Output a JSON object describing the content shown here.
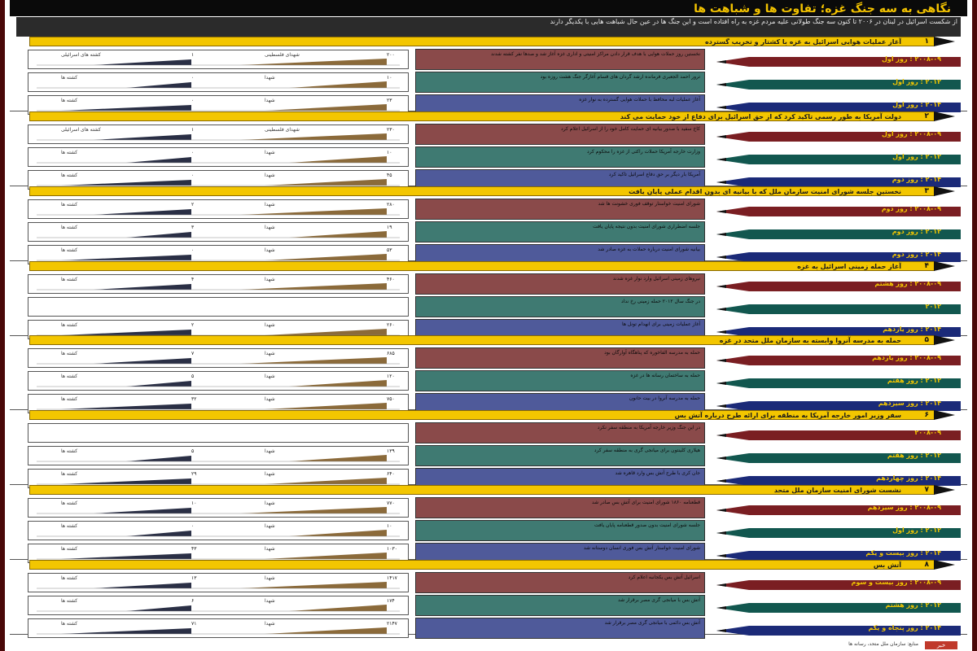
{
  "colors": {
    "frame": "#5a0f0f",
    "banner": "#f3c600",
    "row1": "#7a1e22",
    "row2": "#12574f",
    "row3": "#1b2a78",
    "panel1": "#8a4a4a",
    "panel2": "#3f7a72",
    "panel3": "#4f5a9a",
    "bar_brown": "#8b6a3a",
    "bar_dark": "#2a2f45"
  },
  "title": "نگاهی به سه جنگ غزه؛ تفاوت ها و شباهت ها",
  "intro": "از شکست اسرائیل در لبنان در ۲۰۰۶ تا کنون سه جنگ طولانی علیه مردم غزه به راه افتاده است و این جنگ ها در عین حال شباهت هایی با یکدیگر دارند",
  "sections": [
    {
      "num": "۱",
      "banner": "آغاز عملیات هوایی اسرائیل به غزه با کشتار و تخریب گسترده",
      "rows": [
        {
          "date": "۲۰۰۸-۰۹ : روز اول",
          "panel": "نخستین روز حملات هوایی با هدف قرار دادن مراکز امنیتی و اداری غزه آغاز شد و صدها نفر کشته شدند",
          "l1": "شهدای فلسطینی",
          "v1": "۲۰۰",
          "l2": "کشته های اسرائیلی",
          "v2": "۱"
        },
        {
          "date": "۲۰۱۲ : روز اول",
          "panel": "ترور احمد الجعبری فرمانده ارشد گردان های قسام آغازگر جنگ هشت روزه بود",
          "l1": "شهدا",
          "v1": "۱۰",
          "l2": "کشته ها",
          "v2": "۰"
        },
        {
          "date": "۲۰۱۴ : روز اول",
          "panel": "آغاز عملیات لبه محافظ با حملات هوایی گسترده به نوار غزه",
          "l1": "شهدا",
          "v1": "۲۳",
          "l2": "کشته ها",
          "v2": "۰"
        }
      ]
    },
    {
      "num": "۲",
      "banner": "دولت آمریکا به طور رسمی تاکید کرد که از حق اسرائیل برای دفاع از خود حمایت می کند",
      "rows": [
        {
          "date": "۲۰۰۸-۰۹ : روز اول",
          "panel": "کاخ سفید با صدور بیانیه ای حمایت کامل خود را از اسرائیل اعلام کرد",
          "l1": "شهدای فلسطینی",
          "v1": "۲۳۰",
          "l2": "کشته های اسرائیلی",
          "v2": "۱"
        },
        {
          "date": "۲۰۱۲ : روز اول",
          "panel": "وزارت خارجه آمریکا حملات راکتی از غزه را محکوم کرد",
          "l1": "شهدا",
          "v1": "۱۰",
          "l2": "کشته ها",
          "v2": "۰"
        },
        {
          "date": "۲۰۱۴ : روز دوم",
          "panel": "آمریکا بار دیگر بر حق دفاع اسرائیل تاکید کرد",
          "l1": "شهدا",
          "v1": "۴۵",
          "l2": "کشته ها",
          "v2": "۰"
        }
      ]
    },
    {
      "num": "۳",
      "banner": "نخستین جلسه شورای امنیت سازمان ملل که با بیانیه ای بدون اقدام عملی پایان یافت",
      "rows": [
        {
          "date": "۲۰۰۸-۰۹ : روز دوم",
          "panel": "شورای امنیت خواستار توقف فوری خشونت ها شد",
          "l1": "شهدا",
          "v1": "۲۸۰",
          "l2": "کشته ها",
          "v2": "۲"
        },
        {
          "date": "۲۰۱۲ : روز دوم",
          "panel": "جلسه اضطراری شورای امنیت بدون نتیجه پایان یافت",
          "l1": "شهدا",
          "v1": "۱۹",
          "l2": "کشته ها",
          "v2": "۳"
        },
        {
          "date": "۲۰۱۴ : روز دوم",
          "panel": "بیانیه شورای امنیت درباره حملات به غزه صادر شد",
          "l1": "شهدا",
          "v1": "۵۳",
          "l2": "کشته ها",
          "v2": "۰"
        }
      ]
    },
    {
      "num": "۴",
      "banner": "آغاز حمله زمینی اسرائیل به غزه",
      "rows": [
        {
          "date": "۲۰۰۸-۰۹ : روز هشتم",
          "panel": "نیروهای زمینی اسرائیل وارد نوار غزه شدند",
          "l1": "شهدا",
          "v1": "۴۶۰",
          "l2": "کشته ها",
          "v2": "۴"
        },
        {
          "date": "۲۰۱۲",
          "panel": "در جنگ سال ۲۰۱۲ حمله زمینی رخ نداد",
          "l1": "",
          "v1": "",
          "l2": "",
          "v2": ""
        },
        {
          "date": "۲۰۱۴ : روز یازدهم",
          "panel": "آغاز عملیات زمینی برای انهدام تونل ها",
          "l1": "شهدا",
          "v1": "۲۶۰",
          "l2": "کشته ها",
          "v2": "۲"
        }
      ]
    },
    {
      "num": "۵",
      "banner": "حمله به مدرسه آنروا وابسته به سازمان ملل متحد در غزه",
      "rows": [
        {
          "date": "۲۰۰۸-۰۹ : روز یازدهم",
          "panel": "حمله به مدرسه الفاخوره که پناهگاه آوارگان بود",
          "l1": "شهدا",
          "v1": "۶۸۵",
          "l2": "کشته ها",
          "v2": "۷"
        },
        {
          "date": "۲۰۱۲ : روز هفتم",
          "panel": "حمله به ساختمان رسانه ها در غزه",
          "l1": "شهدا",
          "v1": "۱۲۰",
          "l2": "کشته ها",
          "v2": "۵"
        },
        {
          "date": "۲۰۱۴ : روز سیزدهم",
          "panel": "حمله به مدرسه آنروا در بیت حانون",
          "l1": "شهدا",
          "v1": "۷۵۰",
          "l2": "کشته ها",
          "v2": "۳۲"
        }
      ]
    },
    {
      "num": "۶",
      "banner": "سفر وزیر امور خارجه آمریکا به منطقه برای ارائه طرح درباره آتش بس",
      "rows": [
        {
          "date": "۲۰۰۸-۰۹",
          "panel": "در این جنگ وزیر خارجه آمریکا به منطقه سفر نکرد",
          "l1": "",
          "v1": "",
          "l2": "",
          "v2": ""
        },
        {
          "date": "۲۰۱۲ : روز هفتم",
          "panel": "هیلاری کلینتون برای میانجی گری به منطقه سفر کرد",
          "l1": "شهدا",
          "v1": "۱۳۹",
          "l2": "کشته ها",
          "v2": "۵"
        },
        {
          "date": "۲۰۱۴ : روز چهاردهم",
          "panel": "جان کری با طرح آتش بس وارد قاهره شد",
          "l1": "شهدا",
          "v1": "۶۴۰",
          "l2": "کشته ها",
          "v2": "۲۹"
        }
      ]
    },
    {
      "num": "۷",
      "banner": "نشست شورای امنیت سازمان ملل متحد",
      "rows": [
        {
          "date": "۲۰۰۸-۰۹ : روز سیزدهم",
          "panel": "قطعنامه ۱۸۶۰ شورای امنیت برای آتش بس صادر شد",
          "l1": "شهدا",
          "v1": "۷۷۰",
          "l2": "کشته ها",
          "v2": "۱۰"
        },
        {
          "date": "۲۰۱۲ : روز اول",
          "panel": "جلسه شورای امنیت بدون صدور قطعنامه پایان یافت",
          "l1": "شهدا",
          "v1": "۱۰",
          "l2": "کشته ها",
          "v2": "۰"
        },
        {
          "date": "۲۰۱۴ : روز بیست و یکم",
          "panel": "شورای امنیت خواستار آتش بس فوری انسان دوستانه شد",
          "l1": "شهدا",
          "v1": "۱۰۳۰",
          "l2": "کشته ها",
          "v2": "۴۳"
        }
      ]
    },
    {
      "num": "۸",
      "banner": "آتش بس",
      "rows": [
        {
          "date": "۲۰۰۸-۰۹ : روز بیست و سوم",
          "panel": "اسرائیل آتش بس یکجانبه اعلام کرد",
          "l1": "شهدا",
          "v1": "۱۴۱۷",
          "l2": "کشته ها",
          "v2": "۱۳"
        },
        {
          "date": "۲۰۱۲ : روز هشتم",
          "panel": "آتش بس با میانجی گری مصر برقرار شد",
          "l1": "شهدا",
          "v1": "۱۷۴",
          "l2": "کشته ها",
          "v2": "۶"
        },
        {
          "date": "۲۰۱۴ : روز پنجاه و یکم",
          "panel": "آتش بس دائمی با میانجی گری مصر برقرار شد",
          "l1": "شهدا",
          "v1": "۲۱۴۷",
          "l2": "کشته ها",
          "v2": "۷۱"
        }
      ]
    }
  ],
  "footer": {
    "credit": "منابع: سازمان ملل متحد، رسانه ها",
    "logo": "خبر"
  }
}
